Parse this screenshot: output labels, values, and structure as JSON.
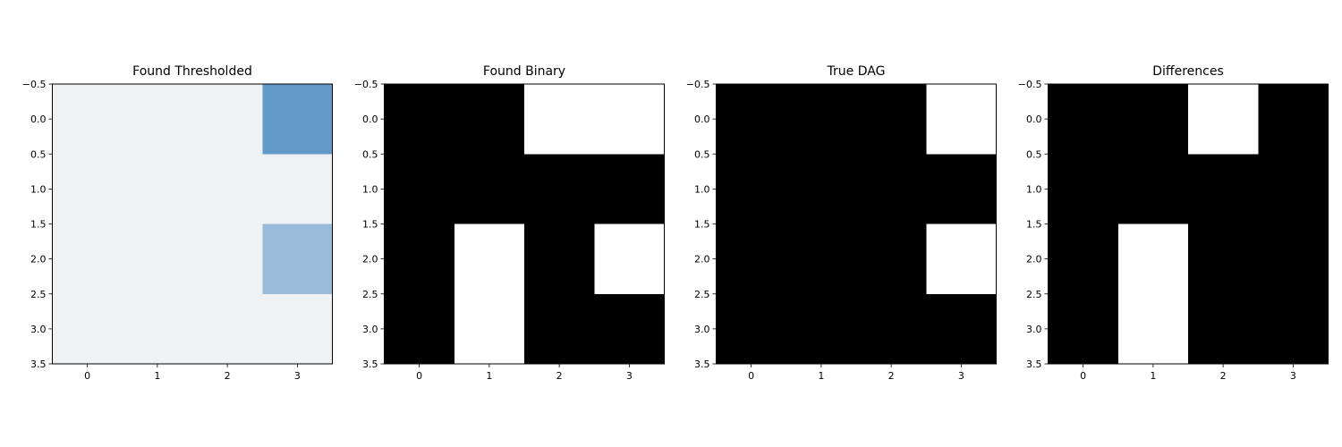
{
  "chart_data": [
    {
      "type": "heatmap",
      "title": "Found Thresholded",
      "x_ticks": [
        "0",
        "1",
        "2",
        "3"
      ],
      "y_ticks": [
        "−0.5",
        "0.0",
        "0.5",
        "1.0",
        "1.5",
        "2.0",
        "2.5",
        "3.0",
        "3.5"
      ],
      "xlim": [
        -0.5,
        3.5
      ],
      "ylim": [
        3.5,
        -0.5
      ],
      "colormap": "Blues",
      "matrix": [
        [
          0,
          0,
          0,
          0.72
        ],
        [
          0,
          0,
          0,
          0
        ],
        [
          0,
          0,
          0,
          0.45
        ],
        [
          0,
          0,
          0,
          0
        ]
      ]
    },
    {
      "type": "heatmap",
      "title": "Found Binary",
      "x_ticks": [
        "0",
        "1",
        "2",
        "3"
      ],
      "y_ticks": [
        "−0.5",
        "0.0",
        "0.5",
        "1.0",
        "1.5",
        "2.0",
        "2.5",
        "3.0",
        "3.5"
      ],
      "xlim": [
        -0.5,
        3.5
      ],
      "ylim": [
        3.5,
        -0.5
      ],
      "colormap": "gray",
      "matrix": [
        [
          0,
          0,
          1,
          1
        ],
        [
          0,
          0,
          0,
          0
        ],
        [
          0,
          1,
          0,
          1
        ],
        [
          0,
          1,
          0,
          0
        ]
      ]
    },
    {
      "type": "heatmap",
      "title": "True DAG",
      "x_ticks": [
        "0",
        "1",
        "2",
        "3"
      ],
      "y_ticks": [
        "−0.5",
        "0.0",
        "0.5",
        "1.0",
        "1.5",
        "2.0",
        "2.5",
        "3.0",
        "3.5"
      ],
      "xlim": [
        -0.5,
        3.5
      ],
      "ylim": [
        3.5,
        -0.5
      ],
      "colormap": "gray",
      "matrix": [
        [
          0,
          0,
          0,
          1
        ],
        [
          0,
          0,
          0,
          0
        ],
        [
          0,
          0,
          0,
          1
        ],
        [
          0,
          0,
          0,
          0
        ]
      ]
    },
    {
      "type": "heatmap",
      "title": "Differences",
      "x_ticks": [
        "0",
        "1",
        "2",
        "3"
      ],
      "y_ticks": [
        "−0.5",
        "0.0",
        "0.5",
        "1.0",
        "1.5",
        "2.0",
        "2.5",
        "3.0",
        "3.5"
      ],
      "xlim": [
        -0.5,
        3.5
      ],
      "ylim": [
        3.5,
        -0.5
      ],
      "colormap": "gray",
      "matrix": [
        [
          0,
          0,
          1,
          0
        ],
        [
          0,
          0,
          0,
          0
        ],
        [
          0,
          1,
          0,
          0
        ],
        [
          0,
          1,
          0,
          0
        ]
      ]
    }
  ]
}
